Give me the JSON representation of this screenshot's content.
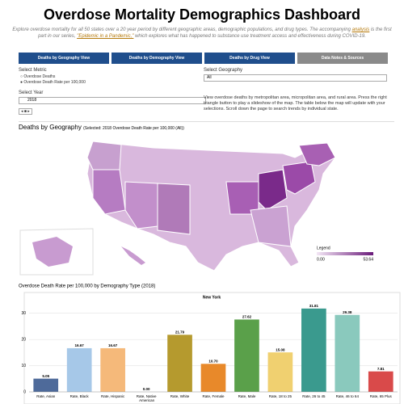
{
  "header": {
    "title": "Overdose Mortality Demographics Dashboard",
    "intro": [
      "Explore overdose mortality for all 50 states over a 20 year period by different geographic areas, demographic populations, and drug types. The accompanying ",
      "analysis",
      " is the first part in our series, ",
      "\"Epidemic in a Pandemic,\"",
      " which explores what has happened to substance use treatment access and effectiveness during COVID-19."
    ]
  },
  "tabs": [
    "Deaths by Geography View",
    "Deaths by Demography View",
    "Deaths by Drug View",
    "Data Notes & Sources"
  ],
  "controls": {
    "metric_label": "Select Metric",
    "metric_options": [
      "Overdose Deaths",
      "Overdose Death Rate per 100,000"
    ],
    "geography_label": "Select Geography",
    "geography_value": "All",
    "year_label": "Select Year",
    "year_value": "2018",
    "description": "View overdose deaths by metropolitan area, micropolitan area, and rural area. Press the right triangle button to play a slideshow of the map. The table below the map will update with your selections. Scroll down the page to search trends by individual state."
  },
  "map": {
    "title": "Deaths by Geography",
    "subtitle": "(Selected: 2018 Overdose Death Rate per 100,000 (All))",
    "legend_title": "Legend",
    "legend_min": "0.00",
    "legend_max": "53.64"
  },
  "chart_data": {
    "type": "bar",
    "title": "Overdose Death Rate per 100,000 by Demography Type (2018)",
    "subtitle": "New York",
    "categories": [
      "Rate, Asian",
      "Rate, Black",
      "Rate, Hispanic",
      "Rate, Native American",
      "Rate, White",
      "Rate, Female",
      "Rate, Male",
      "Rate, 18 to 25",
      "Rate, 26 to 45",
      "Rate, 46 to 64",
      "Rate, 65 Plus"
    ],
    "values": [
      5.05,
      16.67,
      16.67,
      0,
      21.79,
      10.7,
      27.62,
      15.08,
      31.81,
      29.38,
      7.81
    ],
    "value_labels": [
      "5.05",
      "16.67",
      "16.67",
      "0.00",
      "21.79",
      "10.70",
      "27.62",
      "15.08",
      "31.81",
      "29.38",
      "7.81"
    ],
    "colors": [
      "#4e6a9a",
      "#a6c8e8",
      "#f5b97a",
      "#999999",
      "#b59a2e",
      "#e8892a",
      "#5aa04a",
      "#f0d070",
      "#3a9a8e",
      "#8ac9bd",
      "#d94a4a"
    ],
    "ylim": [
      0,
      33
    ],
    "yticks": [
      0,
      10,
      20,
      30
    ],
    "grid": true
  }
}
